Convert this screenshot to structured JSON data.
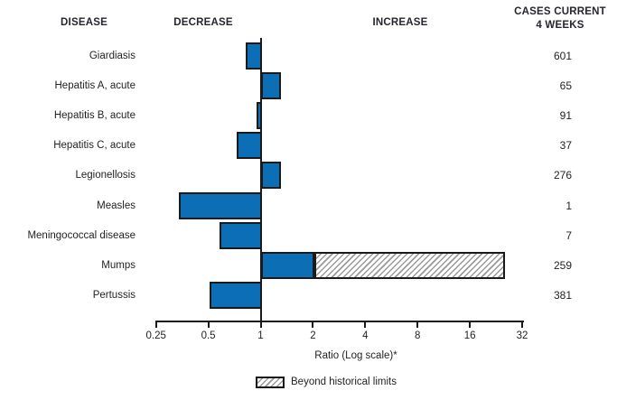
{
  "header": {
    "disease": "DISEASE",
    "decrease": "DECREASE",
    "increase": "INCREASE",
    "cases_line1": "CASES CURRENT",
    "cases_line2": "4 WEEKS"
  },
  "chart_data": {
    "type": "bar",
    "orientation": "horizontal",
    "scale": "log2",
    "xlabel": "Ratio (Log scale)*",
    "ticks": [
      "0.25",
      "0.5",
      "1",
      "2",
      "4",
      "8",
      "16",
      "32"
    ],
    "xlim": [
      0.25,
      32
    ],
    "baseline": 1,
    "legend": {
      "label": "Beyond historical limits",
      "style": "hatched"
    },
    "rows": [
      {
        "disease": "Giardiasis",
        "ratio": 0.82,
        "cases": "601",
        "beyond_historical_limits": false
      },
      {
        "disease": "Hepatitis A, acute",
        "ratio": 1.31,
        "cases": "65",
        "beyond_historical_limits": false
      },
      {
        "disease": "Hepatitis B, acute",
        "ratio": 0.95,
        "cases": "91",
        "beyond_historical_limits": false
      },
      {
        "disease": "Hepatitis C, acute",
        "ratio": 0.73,
        "cases": "37",
        "beyond_historical_limits": false
      },
      {
        "disease": "Legionellosis",
        "ratio": 1.31,
        "cases": "276",
        "beyond_historical_limits": false
      },
      {
        "disease": "Measles",
        "ratio": 0.34,
        "cases": "1",
        "beyond_historical_limits": false
      },
      {
        "disease": "Meningococcal disease",
        "ratio": 0.58,
        "cases": "7",
        "beyond_historical_limits": false
      },
      {
        "disease": "Mumps",
        "ratio": 25.5,
        "historical_limit": 2.05,
        "cases": "259",
        "beyond_historical_limits": true
      },
      {
        "disease": "Pertussis",
        "ratio": 0.51,
        "cases": "381",
        "beyond_historical_limits": false
      }
    ]
  },
  "colors": {
    "bar_blue": "#0c6fb5",
    "border_black": "#1a1a1a",
    "text": "#231f20"
  }
}
